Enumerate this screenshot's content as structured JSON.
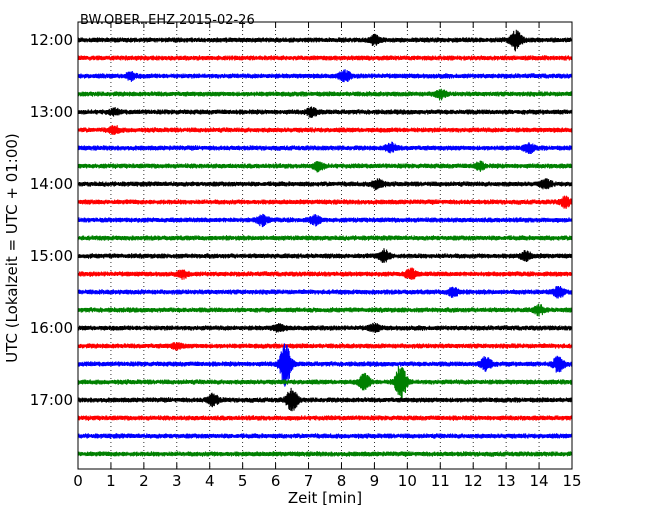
{
  "chart_data": {
    "type": "line",
    "title": "BW.OBER..EHZ 2015-02-26",
    "xlabel": "Zeit  [min]",
    "ylabel": "UTC (Lokalzeit = UTC + 01:00)",
    "xlim": [
      0,
      15
    ],
    "x_ticks": [
      "0",
      "1",
      "2",
      "3",
      "4",
      "5",
      "6",
      "7",
      "8",
      "9",
      "10",
      "11",
      "12",
      "13",
      "14",
      "15"
    ],
    "y_ticks": [
      "12:00",
      "13:00",
      "14:00",
      "15:00",
      "16:00",
      "17:00"
    ],
    "trace_interval_minutes": 15,
    "first_trace": "12:00",
    "grid": true,
    "grid_axis": "x",
    "trace_colors": [
      "#000000",
      "#ff0000",
      "#0000ff",
      "#008000"
    ],
    "traces": [
      {
        "start": "12:00",
        "events": [
          {
            "t": 13.3,
            "amp": 1.2
          },
          {
            "t": 9.0,
            "amp": 0.5
          }
        ]
      },
      {
        "start": "12:15",
        "events": []
      },
      {
        "start": "12:30",
        "events": [
          {
            "t": 8.1,
            "amp": 0.6
          },
          {
            "t": 1.6,
            "amp": 0.4
          }
        ]
      },
      {
        "start": "12:45",
        "events": [
          {
            "t": 11.0,
            "amp": 0.5
          }
        ]
      },
      {
        "start": "13:00",
        "events": [
          {
            "t": 7.1,
            "amp": 0.5
          },
          {
            "t": 1.1,
            "amp": 0.3
          }
        ]
      },
      {
        "start": "13:15",
        "events": [
          {
            "t": 1.1,
            "amp": 0.4
          }
        ]
      },
      {
        "start": "13:30",
        "events": [
          {
            "t": 9.5,
            "amp": 0.5
          },
          {
            "t": 13.7,
            "amp": 0.5
          }
        ]
      },
      {
        "start": "13:45",
        "events": [
          {
            "t": 7.3,
            "amp": 0.5
          },
          {
            "t": 12.2,
            "amp": 0.4
          }
        ]
      },
      {
        "start": "14:00",
        "events": [
          {
            "t": 9.1,
            "amp": 0.6
          },
          {
            "t": 14.2,
            "amp": 0.5
          }
        ]
      },
      {
        "start": "14:15",
        "events": [
          {
            "t": 14.8,
            "amp": 0.6
          }
        ]
      },
      {
        "start": "14:30",
        "events": [
          {
            "t": 5.6,
            "amp": 0.6
          },
          {
            "t": 7.2,
            "amp": 0.5
          }
        ]
      },
      {
        "start": "14:45",
        "events": []
      },
      {
        "start": "15:00",
        "events": [
          {
            "t": 9.3,
            "amp": 0.7
          },
          {
            "t": 13.6,
            "amp": 0.5
          }
        ]
      },
      {
        "start": "15:15",
        "events": [
          {
            "t": 10.1,
            "amp": 0.6
          },
          {
            "t": 3.2,
            "amp": 0.4
          }
        ]
      },
      {
        "start": "15:30",
        "events": [
          {
            "t": 11.4,
            "amp": 0.5
          },
          {
            "t": 14.6,
            "amp": 0.6
          }
        ]
      },
      {
        "start": "15:45",
        "events": [
          {
            "t": 14.0,
            "amp": 0.5
          }
        ]
      },
      {
        "start": "16:00",
        "events": [
          {
            "t": 9.0,
            "amp": 0.4
          },
          {
            "t": 6.1,
            "amp": 0.4
          }
        ]
      },
      {
        "start": "16:15",
        "events": [
          {
            "t": 3.0,
            "amp": 0.3
          }
        ]
      },
      {
        "start": "16:30",
        "events": [
          {
            "t": 6.3,
            "amp": 2.8
          },
          {
            "t": 12.4,
            "amp": 0.9
          },
          {
            "t": 14.6,
            "amp": 1.0
          }
        ]
      },
      {
        "start": "16:45",
        "events": [
          {
            "t": 9.8,
            "amp": 2.3
          },
          {
            "t": 8.7,
            "amp": 1.0
          }
        ]
      },
      {
        "start": "17:00",
        "events": [
          {
            "t": 6.5,
            "amp": 1.4
          },
          {
            "t": 4.1,
            "amp": 0.7
          }
        ]
      },
      {
        "start": "17:15",
        "events": []
      },
      {
        "start": "17:30",
        "events": []
      },
      {
        "start": "17:45",
        "events": []
      }
    ]
  }
}
